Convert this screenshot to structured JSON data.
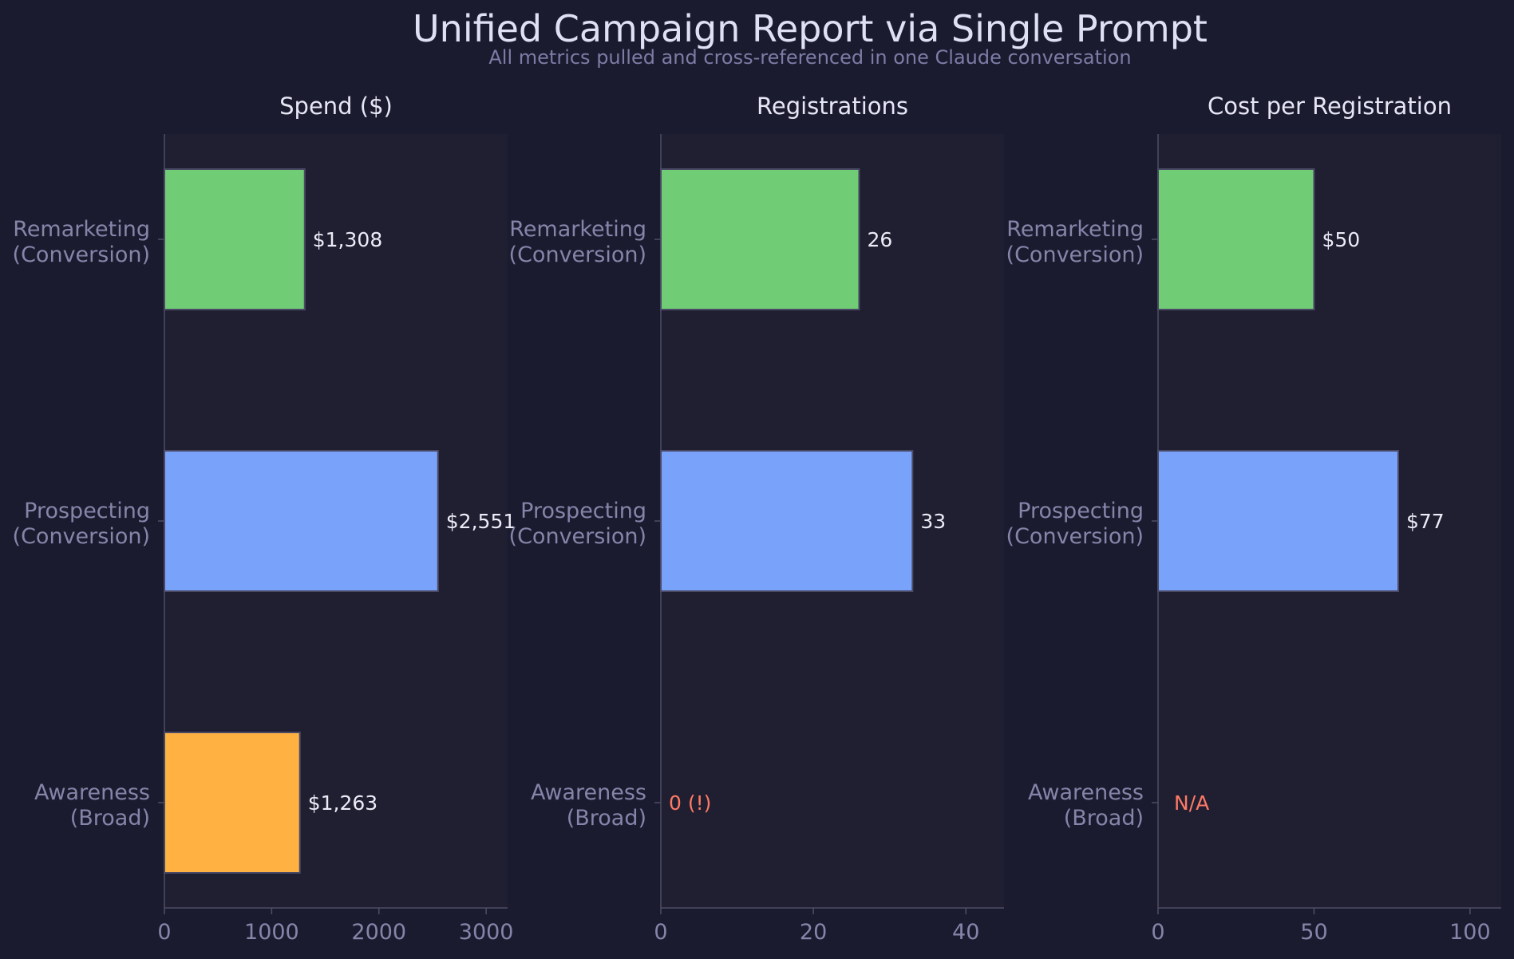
{
  "header": {
    "title": "Unified Campaign Report via Single Prompt",
    "subtitle": "All metrics pulled and cross-referenced in one Claude conversation"
  },
  "colors": {
    "page_background": "#1b1b2f",
    "panel_background": "#201f31",
    "axis": "#4d4d66",
    "bar_edge": "#4a4a66",
    "alert_label": "#ff7a66"
  },
  "chart_data": [
    {
      "type": "bar",
      "orientation": "horizontal",
      "title": "Spend ($)",
      "categories": [
        "Remarketing\n(Conversion)",
        "Prospecting\n(Conversion)",
        "Awareness\n(Broad)"
      ],
      "values": [
        1308,
        2551,
        1263
      ],
      "data_labels": [
        "$1,308",
        "$2,551",
        "$1,263"
      ],
      "alert_labels": [
        false,
        false,
        false
      ],
      "colors": [
        "#71cc76",
        "#79a2fb",
        "#ffb142"
      ],
      "xlim": [
        0,
        3200
      ],
      "xticks": [
        0,
        1000,
        2000,
        3000
      ],
      "grid": false
    },
    {
      "type": "bar",
      "orientation": "horizontal",
      "title": "Registrations",
      "categories": [
        "Remarketing\n(Conversion)",
        "Prospecting\n(Conversion)",
        "Awareness\n(Broad)"
      ],
      "values": [
        26,
        33,
        0
      ],
      "data_labels": [
        "26",
        "33",
        "0 (!)"
      ],
      "alert_labels": [
        false,
        false,
        true
      ],
      "colors": [
        "#71cc76",
        "#79a2fb",
        "#ffb142"
      ],
      "xlim": [
        0,
        45
      ],
      "xticks": [
        0,
        20,
        40
      ],
      "grid": false
    },
    {
      "type": "bar",
      "orientation": "horizontal",
      "title": "Cost per Registration",
      "categories": [
        "Remarketing\n(Conversion)",
        "Prospecting\n(Conversion)",
        "Awareness\n(Broad)"
      ],
      "values": [
        50,
        77,
        0
      ],
      "data_labels": [
        "$50",
        "$77",
        "N/A"
      ],
      "alert_labels": [
        false,
        false,
        true
      ],
      "colors": [
        "#71cc76",
        "#79a2fb",
        "#ffb142"
      ],
      "xlim": [
        0,
        110
      ],
      "xticks": [
        0,
        50,
        100
      ],
      "grid": false
    }
  ]
}
